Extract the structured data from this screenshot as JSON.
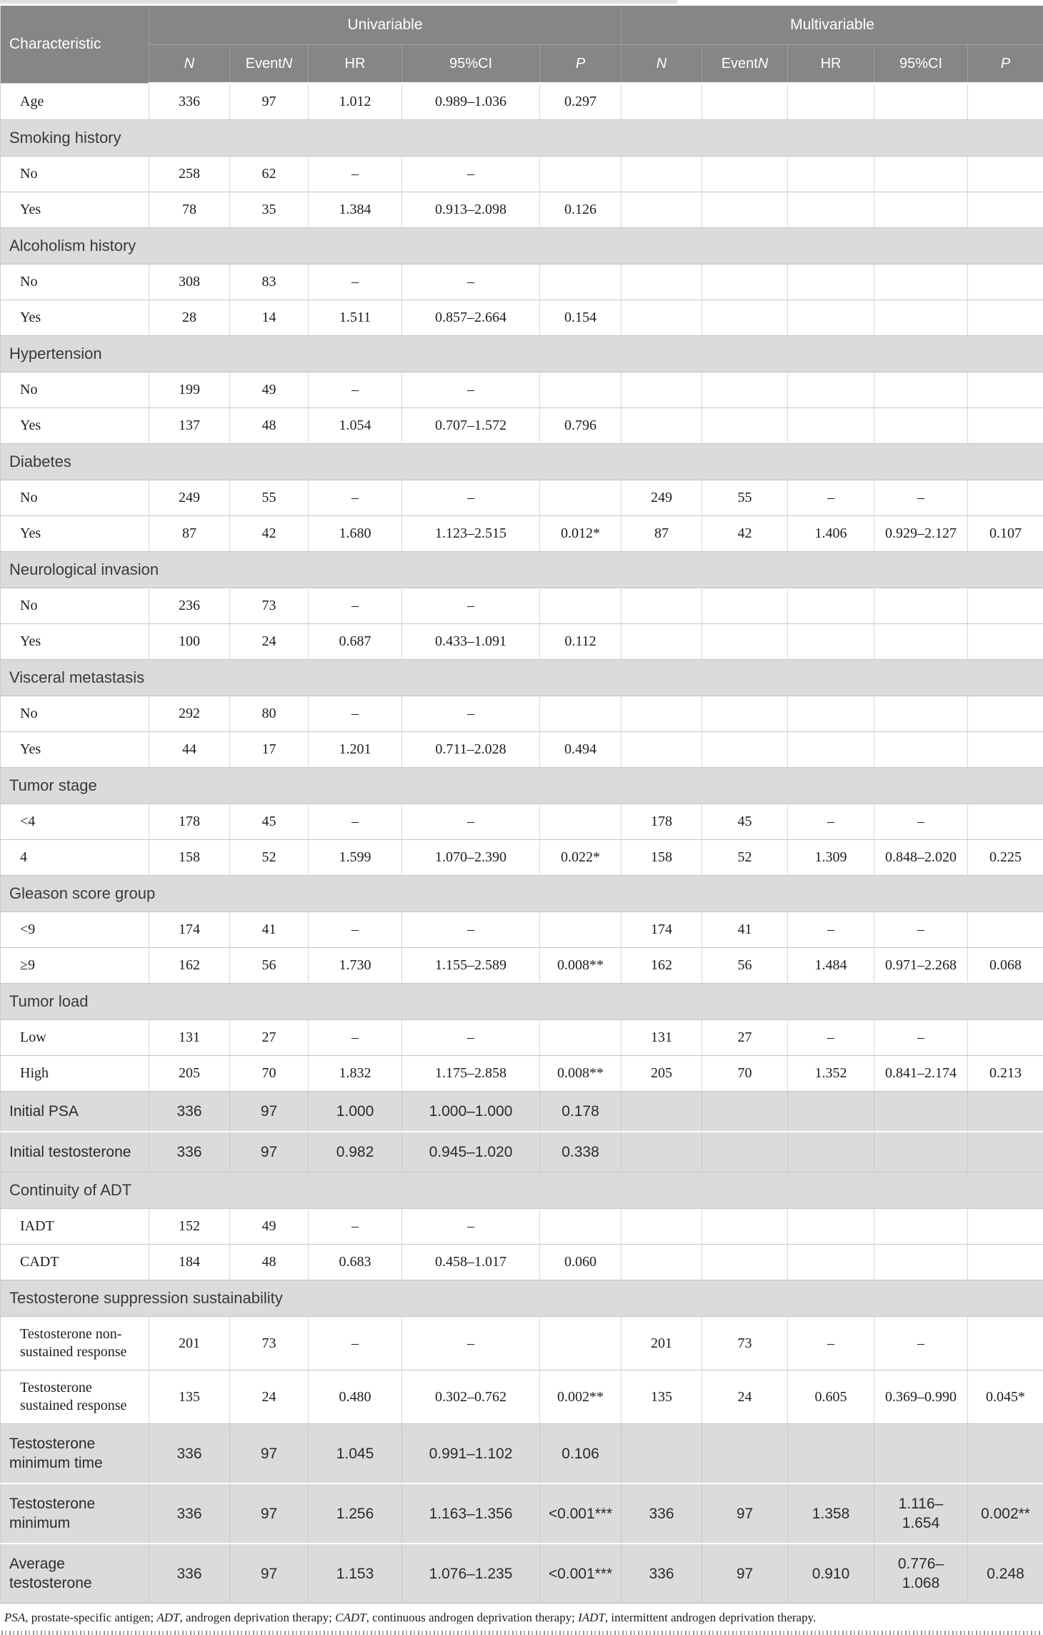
{
  "colors": {
    "header_bg": "#868686",
    "band_bg": "#dbdbdb",
    "header_text": "#ffffff"
  },
  "header": {
    "characteristic": "Characteristic",
    "univariable": "Univariable",
    "multivariable": "Multivariable",
    "sub": {
      "n": "N",
      "event": "Event",
      "hr": "HR",
      "ci": "95%CI",
      "p": "P"
    }
  },
  "rows": [
    {
      "type": "data",
      "indent": true,
      "label": "Age",
      "cells": [
        "336",
        "97",
        "1.012",
        "0.989–1.036",
        "0.297",
        "",
        "",
        "",
        "",
        ""
      ]
    },
    {
      "type": "band",
      "label": "Smoking history"
    },
    {
      "type": "data",
      "indent": true,
      "label": "No",
      "cells": [
        "258",
        "62",
        "–",
        "–",
        "",
        "",
        "",
        "",
        "",
        ""
      ]
    },
    {
      "type": "data",
      "indent": true,
      "label": "Yes",
      "cells": [
        "78",
        "35",
        "1.384",
        "0.913–2.098",
        "0.126",
        "",
        "",
        "",
        "",
        ""
      ]
    },
    {
      "type": "band",
      "label": "Alcoholism history"
    },
    {
      "type": "data",
      "indent": true,
      "label": "No",
      "cells": [
        "308",
        "83",
        "–",
        "–",
        "",
        "",
        "",
        "",
        "",
        ""
      ]
    },
    {
      "type": "data",
      "indent": true,
      "label": "Yes",
      "cells": [
        "28",
        "14",
        "1.511",
        "0.857–2.664",
        "0.154",
        "",
        "",
        "",
        "",
        ""
      ]
    },
    {
      "type": "band",
      "label": "Hypertension"
    },
    {
      "type": "data",
      "indent": true,
      "label": "No",
      "cells": [
        "199",
        "49",
        "–",
        "–",
        "",
        "",
        "",
        "",
        "",
        ""
      ]
    },
    {
      "type": "data",
      "indent": true,
      "label": "Yes",
      "cells": [
        "137",
        "48",
        "1.054",
        "0.707–1.572",
        "0.796",
        "",
        "",
        "",
        "",
        ""
      ]
    },
    {
      "type": "band",
      "label": "Diabetes"
    },
    {
      "type": "data",
      "indent": true,
      "label": "No",
      "cells": [
        "249",
        "55",
        "–",
        "–",
        "",
        "249",
        "55",
        "–",
        "–",
        ""
      ]
    },
    {
      "type": "data",
      "indent": true,
      "label": "Yes",
      "cells": [
        "87",
        "42",
        "1.680",
        "1.123–2.515",
        "0.012*",
        "87",
        "42",
        "1.406",
        "0.929–2.127",
        "0.107"
      ]
    },
    {
      "type": "band",
      "label": "Neurological invasion"
    },
    {
      "type": "data",
      "indent": true,
      "label": "No",
      "cells": [
        "236",
        "73",
        "–",
        "–",
        "",
        "",
        "",
        "",
        "",
        ""
      ]
    },
    {
      "type": "data",
      "indent": true,
      "label": "Yes",
      "cells": [
        "100",
        "24",
        "0.687",
        "0.433–1.091",
        "0.112",
        "",
        "",
        "",
        "",
        ""
      ]
    },
    {
      "type": "band",
      "label": "Visceral metastasis"
    },
    {
      "type": "data",
      "indent": true,
      "label": "No",
      "cells": [
        "292",
        "80",
        "–",
        "–",
        "",
        "",
        "",
        "",
        "",
        ""
      ]
    },
    {
      "type": "data",
      "indent": true,
      "label": "Yes",
      "cells": [
        "44",
        "17",
        "1.201",
        "0.711–2.028",
        "0.494",
        "",
        "",
        "",
        "",
        ""
      ]
    },
    {
      "type": "band",
      "label": "Tumor stage"
    },
    {
      "type": "data",
      "indent": true,
      "label": "<4",
      "cells": [
        "178",
        "45",
        "–",
        "–",
        "",
        "178",
        "45",
        "–",
        "–",
        ""
      ]
    },
    {
      "type": "data",
      "indent": true,
      "label": "4",
      "cells": [
        "158",
        "52",
        "1.599",
        "1.070–2.390",
        "0.022*",
        "158",
        "52",
        "1.309",
        "0.848–2.020",
        "0.225"
      ]
    },
    {
      "type": "band",
      "label": "Gleason score group"
    },
    {
      "type": "data",
      "indent": true,
      "label": "<9",
      "cells": [
        "174",
        "41",
        "–",
        "–",
        "",
        "174",
        "41",
        "–",
        "–",
        ""
      ]
    },
    {
      "type": "data",
      "indent": true,
      "label": "≥9",
      "cells": [
        "162",
        "56",
        "1.730",
        "1.155–2.589",
        "0.008**",
        "162",
        "56",
        "1.484",
        "0.971–2.268",
        "0.068"
      ]
    },
    {
      "type": "band",
      "label": "Tumor load"
    },
    {
      "type": "data",
      "indent": true,
      "label": "Low",
      "cells": [
        "131",
        "27",
        "–",
        "–",
        "",
        "131",
        "27",
        "–",
        "–",
        ""
      ]
    },
    {
      "type": "data",
      "indent": true,
      "label": "High",
      "cells": [
        "205",
        "70",
        "1.832",
        "1.175–2.858",
        "0.008**",
        "205",
        "70",
        "1.352",
        "0.841–2.174",
        "0.213"
      ]
    },
    {
      "type": "banddata",
      "indent": false,
      "label": "Initial PSA",
      "cells": [
        "336",
        "97",
        "1.000",
        "1.000–1.000",
        "0.178",
        "",
        "",
        "",
        "",
        ""
      ]
    },
    {
      "type": "banddata",
      "indent": false,
      "label": "Initial testosterone",
      "cells": [
        "336",
        "97",
        "0.982",
        "0.945–1.020",
        "0.338",
        "",
        "",
        "",
        "",
        ""
      ]
    },
    {
      "type": "band",
      "label": "Continuity of ADT"
    },
    {
      "type": "data",
      "indent": true,
      "label": "IADT",
      "cells": [
        "152",
        "49",
        "–",
        "–",
        "",
        "",
        "",
        "",
        "",
        ""
      ]
    },
    {
      "type": "data",
      "indent": true,
      "label": "CADT",
      "cells": [
        "184",
        "48",
        "0.683",
        "0.458–1.017",
        "0.060",
        "",
        "",
        "",
        "",
        ""
      ]
    },
    {
      "type": "band",
      "label": "Testosterone suppression sustainability"
    },
    {
      "type": "data",
      "indent": true,
      "label": "Testosterone non-sustained response",
      "cells": [
        "201",
        "73",
        "–",
        "–",
        "",
        "201",
        "73",
        "–",
        "–",
        ""
      ]
    },
    {
      "type": "data",
      "indent": true,
      "label": "Testosterone sustained response",
      "cells": [
        "135",
        "24",
        "0.480",
        "0.302–0.762",
        "0.002**",
        "135",
        "24",
        "0.605",
        "0.369–0.990",
        "0.045*"
      ]
    },
    {
      "type": "banddata",
      "indent": false,
      "label": "Testosterone minimum time",
      "cells": [
        "336",
        "97",
        "1.045",
        "0.991–1.102",
        "0.106",
        "",
        "",
        "",
        "",
        ""
      ]
    },
    {
      "type": "banddata",
      "indent": false,
      "label": "Testosterone minimum",
      "cells": [
        "336",
        "97",
        "1.256",
        "1.163–1.356",
        "<0.001***",
        "336",
        "97",
        "1.358",
        "1.116–\n1.654",
        "0.002**"
      ]
    },
    {
      "type": "banddata",
      "indent": false,
      "label": "Average testosterone",
      "cells": [
        "336",
        "97",
        "1.153",
        "1.076–1.235",
        "<0.001***",
        "336",
        "97",
        "0.910",
        "0.776–\n1.068",
        "0.248"
      ]
    }
  ],
  "footnote": {
    "abbr_psa": "PSA",
    "def_psa": ", prostate-specific antigen; ",
    "abbr_adt": "ADT",
    "def_adt": ", androgen deprivation therapy; ",
    "abbr_cadt": "CADT",
    "def_cadt": ", continuous androgen deprivation therapy; ",
    "abbr_iadt": "IADT",
    "def_iadt": ", intermittent androgen deprivation therapy."
  }
}
